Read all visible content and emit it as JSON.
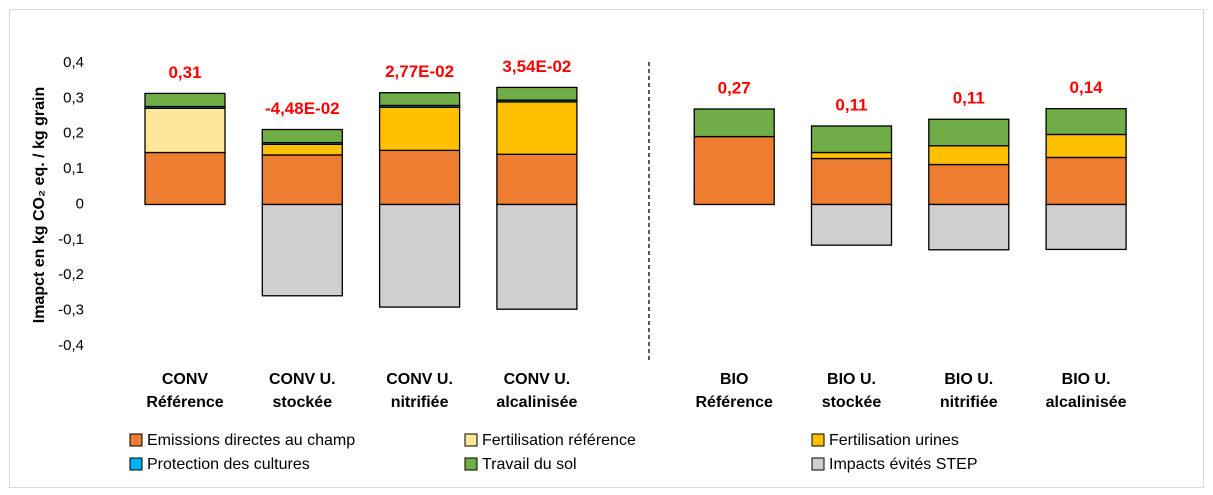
{
  "chart_data": {
    "type": "stacked_bar",
    "ylabel": "Imapct en kg CO₂ eq. / kg grain",
    "categories": [
      [
        "CONV",
        "Référence"
      ],
      [
        "CONV U.",
        "stockée"
      ],
      [
        "CONV U.",
        "nitrifiée"
      ],
      [
        "CONV U.",
        "alcalinisée"
      ],
      [
        "BIO",
        "Référence"
      ],
      [
        "BIO U.",
        "stockée"
      ],
      [
        "BIO U.",
        "nitrifiée"
      ],
      [
        "BIO U.",
        "alcalinisée"
      ]
    ],
    "series": [
      {
        "name": "Emissions directes au champ",
        "color": "#ed7d31",
        "values": [
          0.147,
          0.14,
          0.153,
          0.142,
          0.192,
          0.13,
          0.113,
          0.133
        ]
      },
      {
        "name": "Fertilisation référence",
        "color": "#ffe699",
        "values": [
          0.125,
          0,
          0,
          0,
          0,
          0,
          0,
          0
        ]
      },
      {
        "name": "Fertilisation urines",
        "color": "#ffc000",
        "values": [
          0,
          0.03,
          0.122,
          0.148,
          0,
          0.017,
          0.053,
          0.065
        ]
      },
      {
        "name": "Protection des cultures",
        "color": "#00b0f0",
        "values": [
          0.005,
          0.005,
          0.005,
          0.005,
          0,
          0,
          0,
          0
        ]
      },
      {
        "name": "Travail du sol",
        "color": "#70ad47",
        "values": [
          0.037,
          0.037,
          0.036,
          0.036,
          0.078,
          0.075,
          0.075,
          0.073
        ]
      },
      {
        "name": "Impacts évités STEP",
        "color": "#d0cece",
        "values": [
          0,
          -0.258,
          -0.29,
          -0.296,
          0,
          -0.115,
          -0.128,
          -0.127
        ]
      }
    ],
    "totals": {
      "values": [
        0.31,
        -0.0448,
        0.0277,
        0.0354,
        0.27,
        0.11,
        0.11,
        0.14
      ],
      "value_labels": [
        "0,31",
        "-4,48E-02",
        "2,77E-02",
        "3,54E-02",
        "0,27",
        "0,11",
        "0,11",
        "0,14"
      ]
    },
    "ylim": [
      -0.4,
      0.4
    ],
    "yticks": [
      {
        "value": -0.4,
        "label": "-0,4"
      },
      {
        "value": -0.3,
        "label": "-0,3"
      },
      {
        "value": -0.2,
        "label": "-0,2"
      },
      {
        "value": -0.1,
        "label": "-0,1"
      },
      0,
      {
        "value": 0.1,
        "label": "0,1"
      },
      {
        "value": 0.2,
        "label": "0,2"
      },
      {
        "value": 0.3,
        "label": "0,3"
      },
      {
        "value": 0.4,
        "label": "0,4"
      }
    ],
    "grid": false
  }
}
